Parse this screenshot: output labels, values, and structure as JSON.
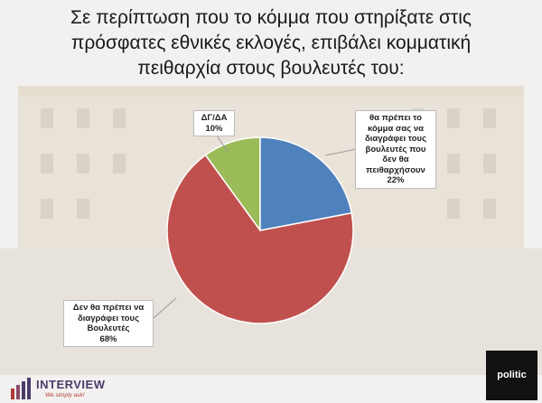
{
  "chart_data": {
    "type": "pie",
    "title": "Σε περίπτωση που το κόμμα που στηρίξατε στις πρόσφατες εθνικές εκλογές, επιβάλει κομματική πειθαρχία στους βουλευτές του:",
    "categories": [
      "θα πρέπει το κόμμα σας να διαγράφει τους βουλευτές που δεν θα πειθαρχήσουν",
      "Δεν θα πρέπει να διαγράφει τους Βουλευτές",
      "ΔΓ/ΔΑ"
    ],
    "values": [
      22,
      68,
      10
    ],
    "value_labels": [
      "22%",
      "68%",
      "10%"
    ],
    "colors": [
      "#4f81bd",
      "#c0504d",
      "#9bbb59"
    ]
  },
  "logos": {
    "left": "INTERVIEW",
    "left_tagline": "We simply ask!",
    "right": "politic"
  }
}
